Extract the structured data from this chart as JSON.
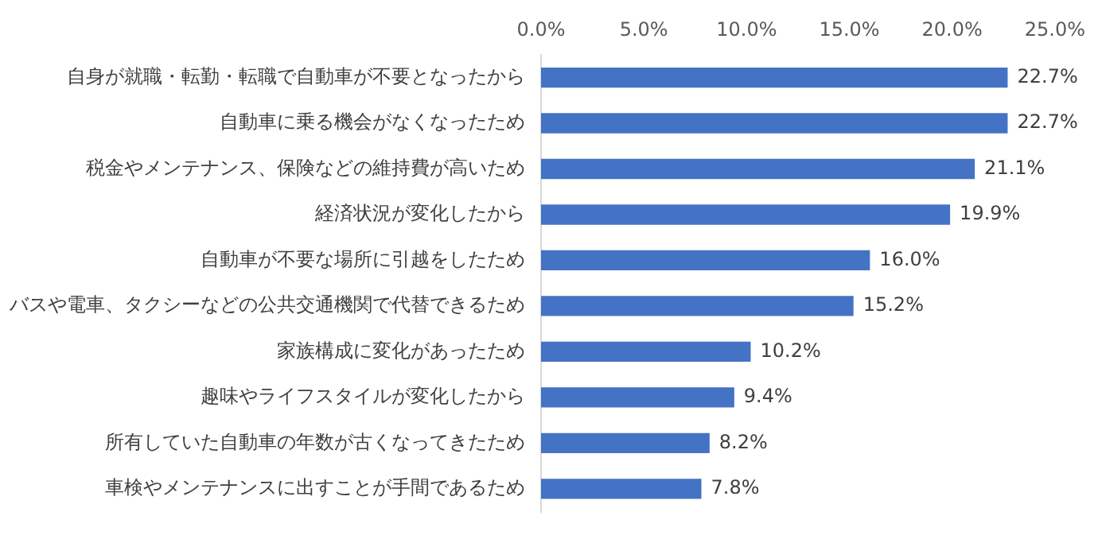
{
  "chart_data": {
    "type": "bar",
    "orientation": "horizontal",
    "categories": [
      "自身が就職・転勤・転職で自動車が不要となったから",
      "自動車に乗る機会がなくなったため",
      "税金やメンテナンス、保険などの維持費が高いため",
      "経済状況が変化したから",
      "自動車が不要な場所に引越をしたため",
      "バスや電車、タクシーなどの公共交通機関で代替できるため",
      "家族構成に変化があったため",
      "趣味やライフスタイルが変化したから",
      "所有していた自動車の年数が古くなってきたため",
      "車検やメンテナンスに出すことが手間であるため"
    ],
    "values": [
      22.7,
      22.7,
      21.1,
      19.9,
      16.0,
      15.2,
      10.2,
      9.4,
      8.2,
      7.8
    ],
    "value_labels": [
      "22.7%",
      "22.7%",
      "21.1%",
      "19.9%",
      "16.0%",
      "15.2%",
      "10.2%",
      "9.4%",
      "8.2%",
      "7.8%"
    ],
    "color": "#4472c4",
    "xlim": [
      0,
      25
    ],
    "xticks": [
      {
        "value": 0,
        "label": "0.0%"
      },
      {
        "value": 5,
        "label": "5.0%"
      },
      {
        "value": 10,
        "label": "10.0%"
      },
      {
        "value": 15,
        "label": "15.0%"
      },
      {
        "value": 20,
        "label": "20.0%"
      },
      {
        "value": 25,
        "label": "25.0%"
      }
    ],
    "grid": false,
    "legend": false
  }
}
